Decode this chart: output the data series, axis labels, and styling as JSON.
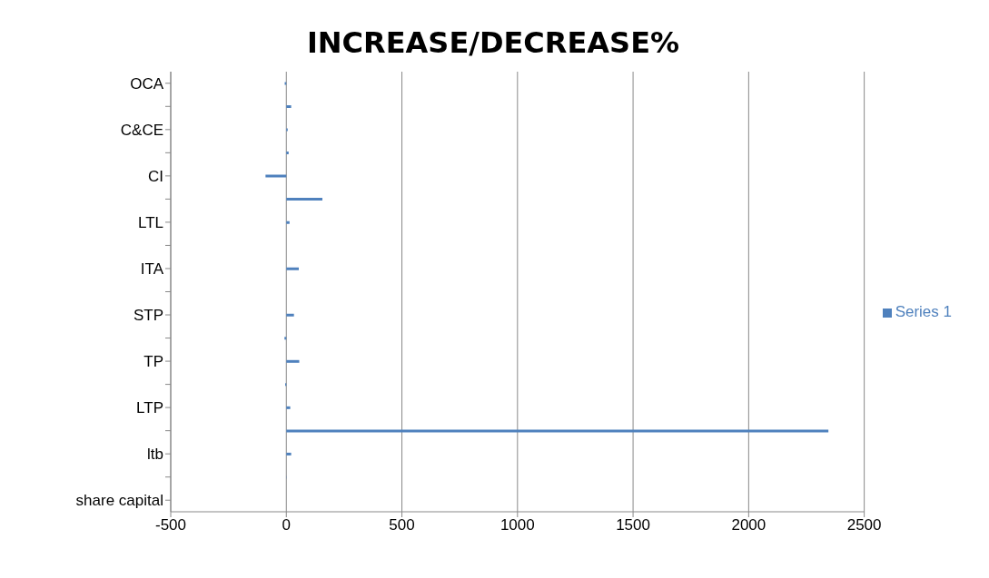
{
  "chart_data": {
    "type": "bar",
    "orientation": "horizontal",
    "title": "INCREASE/DECREASE%",
    "categories": [
      "OCA",
      null,
      "C&CE",
      null,
      "CI",
      null,
      "LTL",
      null,
      "ITA",
      null,
      "STP",
      null,
      "TP",
      null,
      "LTP",
      null,
      "ltb",
      null,
      "share capital"
    ],
    "series": [
      {
        "name": "Series 1",
        "color": "#4f81bd",
        "values": [
          -7,
          21,
          6,
          10,
          -90,
          156,
          14,
          0,
          54,
          0,
          33,
          -8,
          56,
          -5,
          17,
          2345,
          21,
          1,
          0
        ]
      }
    ],
    "xlim": [
      -500,
      2500
    ],
    "xticks": [
      -500,
      0,
      500,
      1000,
      1500,
      2000,
      2500
    ],
    "grid": "x",
    "legend": "right"
  }
}
